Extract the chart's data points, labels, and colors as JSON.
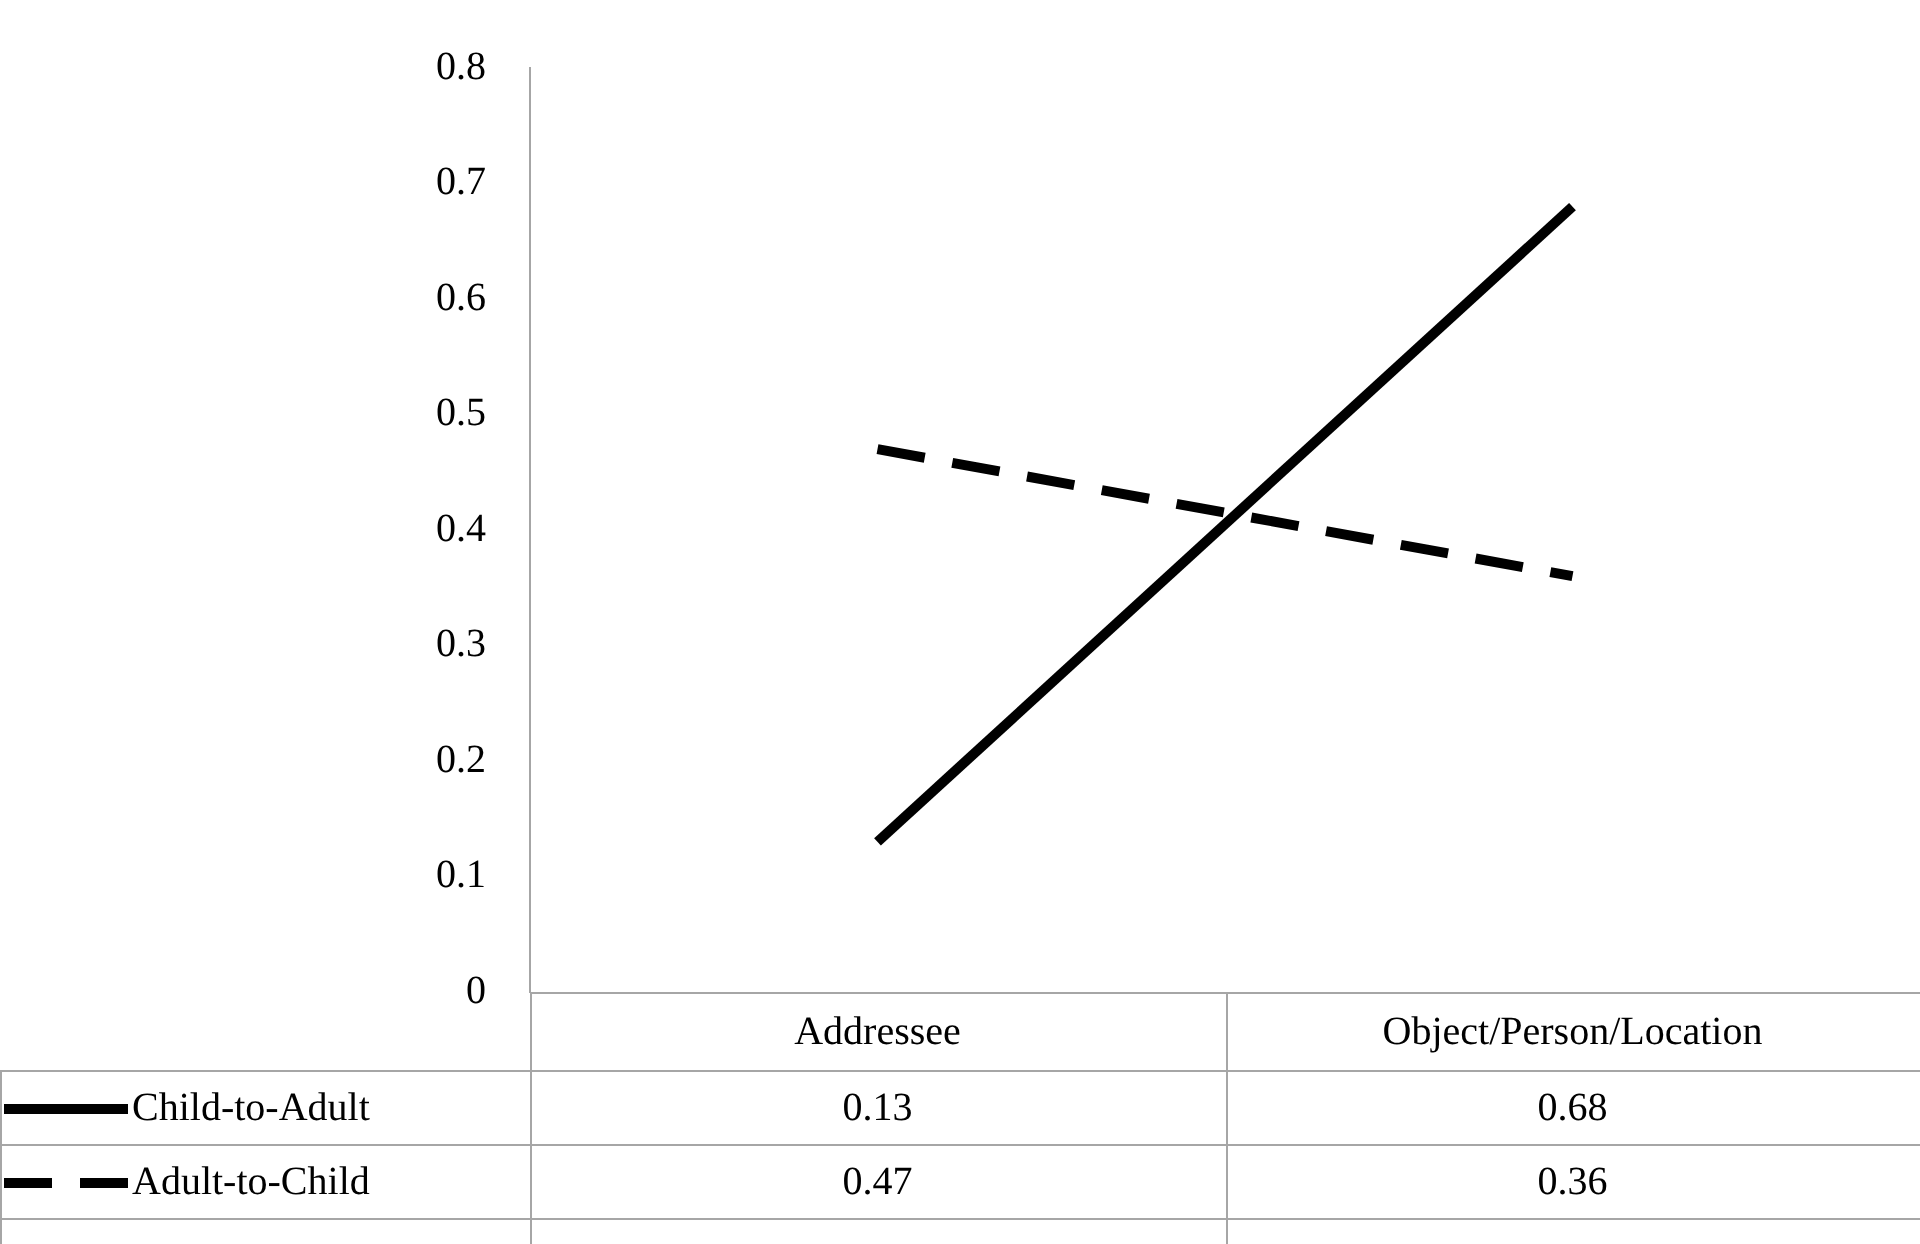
{
  "chart_data": {
    "type": "line",
    "categories": [
      "Addressee",
      "Object/Person/Location"
    ],
    "series": [
      {
        "name": "Child-to-Adult",
        "color": "#000000",
        "values": [
          0.13,
          0.68
        ],
        "line_style": "solid"
      },
      {
        "name": "Adult-to-Child",
        "color": "#000000",
        "values": [
          0.47,
          0.36
        ],
        "line_style": "dashed"
      }
    ],
    "ylim": [
      0,
      0.8
    ],
    "yticks": [
      0,
      0.1,
      0.2,
      0.3,
      0.4,
      0.5,
      0.6,
      0.7,
      0.8
    ],
    "grid": false,
    "legend": "bottom",
    "marker": "none",
    "data_labels": true
  }
}
